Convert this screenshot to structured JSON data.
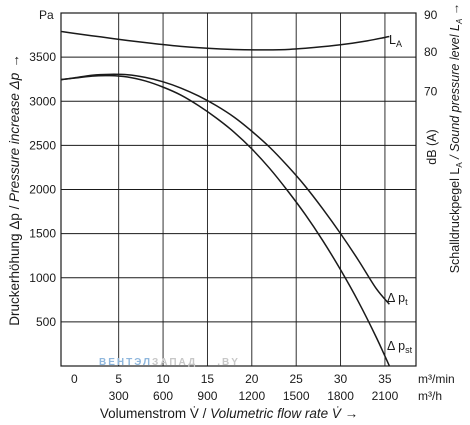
{
  "chart_data": {
    "type": "line",
    "y_unit_label": "Pa",
    "ylabel": "Druckerhöhung Δp / Pressure increase Δp  →",
    "ylabel_plain": "Druckerhöhung Δp / ",
    "ylabel_italic": "Pressure increase Δp",
    "ylabel_arrow": "→",
    "ylim": [
      0,
      4000
    ],
    "yticks": [
      500,
      1000,
      1500,
      2000,
      2500,
      3000,
      3500
    ],
    "right_axis": {
      "unit_label": "90",
      "ylabel_unit": "dB (A)",
      "ylabel_plain": "Schalldruckpegel L",
      "ylabel_sub": "A",
      "ylabel_italic": " / Sound pressure level L",
      "ylabel_italic_sub": "A",
      "ylabel_arrow": " →",
      "ticks": [
        70,
        80,
        90
      ],
      "ylim": [
        0,
        90
      ]
    },
    "xlim": [
      -1.5,
      38.5
    ],
    "x_ticks_m3min": [
      0,
      5,
      10,
      15,
      20,
      25,
      30,
      35
    ],
    "x_ticks_m3h": [
      {
        "x": 5,
        "label": "300"
      },
      {
        "x": 10,
        "label": "600"
      },
      {
        "x": 15,
        "label": "900"
      },
      {
        "x": 20,
        "label": "1200"
      },
      {
        "x": 25,
        "label": "1500"
      },
      {
        "x": 30,
        "label": "1800"
      },
      {
        "x": 35,
        "label": "2100"
      }
    ],
    "x_unit_top": "m³/min",
    "x_unit_bottom": "m³/h",
    "xlabel_plain": "Volumenstrom V̇ / ",
    "xlabel_italic": "Volumetric flow rate V̇",
    "xlabel_arrow": " →",
    "grid": true,
    "series": [
      {
        "name": "Δ pt",
        "label_main": "Δ p",
        "label_sub": "t",
        "axis": "left",
        "x": [
          -1.5,
          0,
          2,
          4,
          6,
          8,
          10,
          12,
          14,
          16,
          18,
          20,
          22,
          24,
          26,
          28,
          30,
          32,
          34,
          35.5
        ],
        "y": [
          3245,
          3265,
          3295,
          3305,
          3300,
          3270,
          3220,
          3150,
          3060,
          2950,
          2820,
          2660,
          2480,
          2270,
          2040,
          1780,
          1500,
          1200,
          880,
          700
        ]
      },
      {
        "name": "Δ pst",
        "label_main": "Δ p",
        "label_sub": "st",
        "axis": "left",
        "x": [
          -1.5,
          0,
          2,
          4,
          6,
          8,
          10,
          12,
          14,
          16,
          18,
          20,
          22,
          24,
          26,
          28,
          30,
          32,
          34,
          35.5
        ],
        "y": [
          3245,
          3262,
          3285,
          3290,
          3275,
          3230,
          3160,
          3070,
          2950,
          2810,
          2650,
          2460,
          2240,
          1990,
          1720,
          1420,
          1090,
          730,
          330,
          0
        ]
      },
      {
        "name": "LA",
        "label_main": "L",
        "label_sub": "A",
        "axis": "right",
        "x": [
          -1.5,
          0,
          3,
          6,
          9,
          12,
          15,
          18,
          21,
          24,
          27,
          30,
          33,
          35.5
        ],
        "y": [
          85.3,
          84.8,
          83.9,
          83.0,
          82.2,
          81.5,
          81.0,
          80.7,
          80.6,
          80.7,
          81.2,
          81.9,
          82.9,
          84.0
        ]
      }
    ]
  },
  "watermark": {
    "part1": "ВЕНТЭЛ",
    "part2": "ЗАПАД",
    "part3": ".BY"
  }
}
